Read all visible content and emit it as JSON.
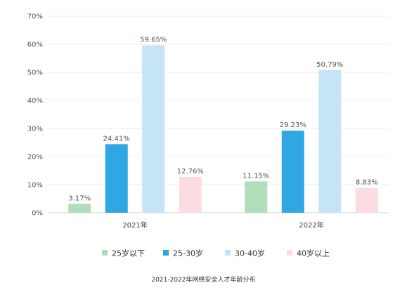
{
  "chart_data": {
    "type": "bar",
    "title": "2021-2022年网络安全人才年龄分布",
    "categories": [
      "2021年",
      "2022年"
    ],
    "series": [
      {
        "name": "25岁以下",
        "color": "#b3dcb8",
        "values": [
          3.17,
          11.15
        ],
        "labels": [
          "3.17%",
          "11.15%"
        ]
      },
      {
        "name": "25-30岁",
        "color": "#2fa7e2",
        "values": [
          24.41,
          29.23
        ],
        "labels": [
          "24.41%",
          "29.23%"
        ]
      },
      {
        "name": "30-40岁",
        "color": "#c5e5f7",
        "values": [
          59.65,
          50.79
        ],
        "labels": [
          "59.65%",
          "50.79%"
        ]
      },
      {
        "name": "40岁以上",
        "color": "#fbdde1",
        "values": [
          12.76,
          8.83
        ],
        "labels": [
          "12.76%",
          "8.83%"
        ]
      }
    ],
    "ylim": [
      0,
      70
    ],
    "yticks": [
      "0%",
      "10%",
      "20%",
      "30%",
      "40%",
      "50%",
      "60%",
      "70%"
    ],
    "xlabel": "",
    "ylabel": "",
    "grid": true,
    "legend": "bottom"
  }
}
